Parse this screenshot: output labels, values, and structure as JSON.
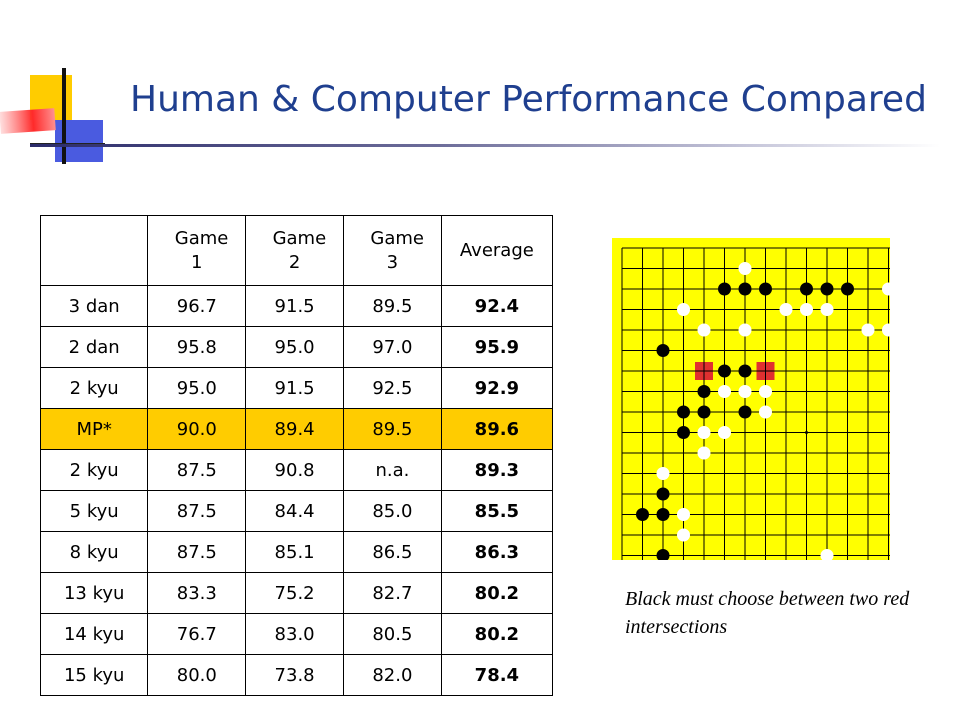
{
  "title": "Human & Computer Performance Compared",
  "table": {
    "headers": [
      "",
      "Game 1",
      "Game 2",
      "Game 3",
      "Average"
    ],
    "rows": [
      {
        "rank": "3 dan",
        "g1": "96.7",
        "g2": "91.5",
        "g3": "89.5",
        "avg": "92.4"
      },
      {
        "rank": "2 dan",
        "g1": "95.8",
        "g2": "95.0",
        "g3": "97.0",
        "avg": "95.9"
      },
      {
        "rank": "2 kyu",
        "g1": "95.0",
        "g2": "91.5",
        "g3": "92.5",
        "avg": "92.9"
      },
      {
        "rank": "MP*",
        "g1": "90.0",
        "g2": "89.4",
        "g3": "89.5",
        "avg": "89.6",
        "highlight": true
      },
      {
        "rank": "2 kyu",
        "g1": "87.5",
        "g2": "90.8",
        "g3": "n.a.",
        "avg": "89.3"
      },
      {
        "rank": "5 kyu",
        "g1": "87.5",
        "g2": "84.4",
        "g3": "85.0",
        "avg": "85.5"
      },
      {
        "rank": "8 kyu",
        "g1": "87.5",
        "g2": "85.1",
        "g3": "86.5",
        "avg": "86.3"
      },
      {
        "rank": "13 kyu",
        "g1": "83.3",
        "g2": "75.2",
        "g3": "82.7",
        "avg": "80.2"
      },
      {
        "rank": "14 kyu",
        "g1": "76.7",
        "g2": "83.0",
        "g3": "80.5",
        "avg": "80.2"
      },
      {
        "rank": "15 kyu",
        "g1": "80.0",
        "g2": "73.8",
        "g3": "82.0",
        "avg": "78.4"
      }
    ]
  },
  "caption": "Black must choose between two red intersections",
  "colors": {
    "title": "#1f3f8f",
    "highlight_row": "#ffcc00",
    "board": "#ffff00",
    "marker": "#e03030"
  }
}
